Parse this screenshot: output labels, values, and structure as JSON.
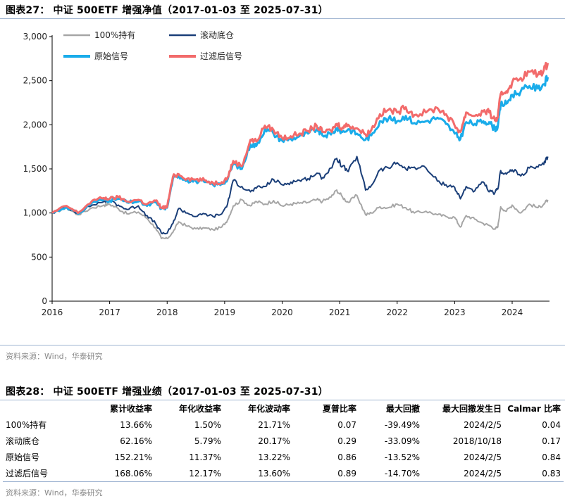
{
  "fig1": {
    "title": "图表27： 中证 500ETF 增强净值（2017-01-03 至 2025-07-31）",
    "source": "资料来源：Wind，华泰研究"
  },
  "fig2": {
    "title": "图表28： 中证 500ETF 增强业绩（2017-01-03 至 2025-07-31）",
    "source": "资料来源：Wind，华泰研究"
  },
  "chart_data": {
    "type": "line",
    "title": "",
    "xlabel": "",
    "ylabel": "",
    "xlim": [
      2016,
      2024.65
    ],
    "ylim": [
      0,
      3000
    ],
    "x_ticks": [
      "2016",
      "2017",
      "2018",
      "2019",
      "2020",
      "2021",
      "2022",
      "2023",
      "2024"
    ],
    "y_ticks": [
      "0",
      "500",
      "1,000",
      "1,500",
      "2,000",
      "2,500",
      "3,000"
    ],
    "grid": false,
    "legend_position": "top-left",
    "x": [
      2016.0,
      2016.25,
      2016.45,
      2016.7,
      2016.9,
      2017.0,
      2017.15,
      2017.3,
      2017.5,
      2017.65,
      2017.8,
      2017.9,
      2018.0,
      2018.1,
      2018.2,
      2018.35,
      2018.5,
      2018.65,
      2018.8,
      2018.95,
      2019.05,
      2019.15,
      2019.3,
      2019.45,
      2019.55,
      2019.7,
      2019.85,
      2020.0,
      2020.15,
      2020.3,
      2020.45,
      2020.6,
      2020.7,
      2020.85,
      2020.95,
      2021.05,
      2021.15,
      2021.3,
      2021.45,
      2021.55,
      2021.7,
      2021.85,
      2022.0,
      2022.15,
      2022.3,
      2022.5,
      2022.7,
      2022.85,
      2023.0,
      2023.1,
      2023.2,
      2023.35,
      2023.5,
      2023.6,
      2023.7,
      2023.75,
      2023.8,
      2023.9,
      2024.0,
      2024.15,
      2024.3,
      2024.45,
      2024.55,
      2024.62
    ],
    "series": [
      {
        "name": "100%持有",
        "color": "#a6a6a6",
        "values": [
          1000,
          1060,
          980,
          1060,
          1090,
          1100,
          1050,
          990,
          1010,
          940,
          830,
          710,
          710,
          780,
          900,
          850,
          820,
          830,
          810,
          840,
          920,
          1080,
          1150,
          1080,
          1130,
          1100,
          1140,
          1080,
          1100,
          1110,
          1120,
          1150,
          1130,
          1180,
          1260,
          1180,
          1120,
          1200,
          980,
          1000,
          1070,
          1060,
          1100,
          1060,
          1000,
          1020,
          980,
          960,
          950,
          840,
          970,
          930,
          880,
          860,
          820,
          840,
          1070,
          1020,
          1090,
          1000,
          1100,
          1060,
          1100,
          1150
        ]
      },
      {
        "name": "滚动底仓",
        "color": "#1a3e78",
        "values": [
          1000,
          1070,
          1000,
          1090,
          1130,
          1150,
          1090,
          1040,
          1080,
          970,
          880,
          770,
          770,
          880,
          1050,
          1000,
          960,
          990,
          960,
          990,
          1100,
          1370,
          1300,
          1240,
          1280,
          1300,
          1380,
          1320,
          1350,
          1370,
          1390,
          1450,
          1400,
          1510,
          1620,
          1530,
          1470,
          1640,
          1260,
          1310,
          1490,
          1510,
          1570,
          1500,
          1520,
          1510,
          1360,
          1320,
          1290,
          1160,
          1300,
          1250,
          1350,
          1240,
          1230,
          1270,
          1480,
          1440,
          1490,
          1420,
          1510,
          1520,
          1550,
          1640
        ]
      },
      {
        "name": "原始信号",
        "color": "#1aacea",
        "values": [
          1000,
          1070,
          990,
          1120,
          1150,
          1140,
          1160,
          1120,
          1130,
          1080,
          1120,
          1050,
          1060,
          1390,
          1420,
          1370,
          1360,
          1350,
          1320,
          1330,
          1380,
          1560,
          1500,
          1780,
          1760,
          1950,
          1900,
          1820,
          1840,
          1870,
          1900,
          1950,
          1880,
          1890,
          1960,
          1920,
          1950,
          1900,
          1830,
          1880,
          2040,
          2070,
          2040,
          2100,
          2020,
          2040,
          2080,
          2010,
          1900,
          1840,
          2030,
          2010,
          2040,
          2030,
          1950,
          1980,
          2230,
          2240,
          2340,
          2380,
          2440,
          2410,
          2460,
          2540
        ]
      },
      {
        "name": "过滤后信号",
        "color": "#f26b6b",
        "values": [
          1000,
          1080,
          1000,
          1140,
          1170,
          1160,
          1180,
          1130,
          1150,
          1100,
          1140,
          1060,
          1070,
          1410,
          1440,
          1390,
          1380,
          1370,
          1340,
          1350,
          1400,
          1590,
          1530,
          1830,
          1810,
          1990,
          1940,
          1850,
          1870,
          1900,
          1930,
          1990,
          1920,
          1930,
          2010,
          1970,
          2000,
          1960,
          1890,
          1940,
          2120,
          2170,
          2140,
          2200,
          2110,
          2140,
          2190,
          2120,
          1990,
          1920,
          2140,
          2100,
          2150,
          2140,
          2050,
          2080,
          2350,
          2380,
          2480,
          2530,
          2600,
          2570,
          2620,
          2700
        ]
      }
    ]
  },
  "table": {
    "headers": [
      "",
      "累计收益率",
      "年化收益率",
      "年化波动率",
      "夏普比率",
      "最大回撤",
      "最大回撤发生日",
      "Calmar 比率"
    ],
    "rows": [
      [
        "100%持有",
        "13.66%",
        "1.50%",
        "21.71%",
        "0.07",
        "-39.49%",
        "2024/2/5",
        "0.04"
      ],
      [
        "滚动底仓",
        "62.16%",
        "5.79%",
        "20.17%",
        "0.29",
        "-33.09%",
        "2018/10/18",
        "0.17"
      ],
      [
        "原始信号",
        "152.21%",
        "11.37%",
        "13.22%",
        "0.86",
        "-13.52%",
        "2024/2/5",
        "0.84"
      ],
      [
        "过滤后信号",
        "168.06%",
        "12.17%",
        "13.60%",
        "0.89",
        "-14.70%",
        "2024/2/5",
        "0.83"
      ]
    ]
  }
}
